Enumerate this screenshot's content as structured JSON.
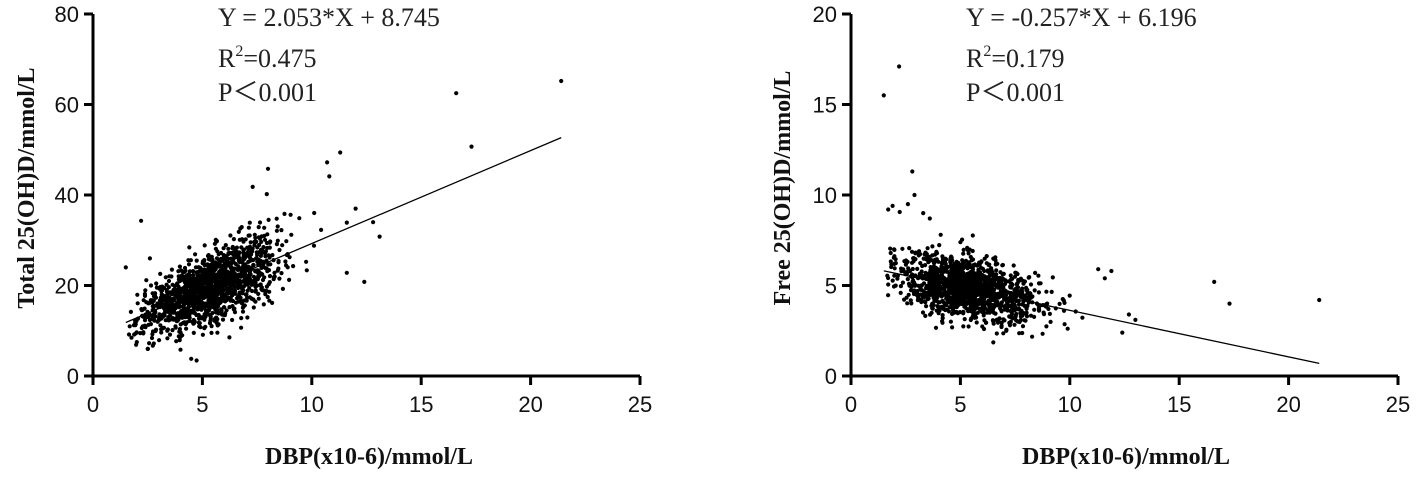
{
  "chart_data": [
    {
      "type": "scatter",
      "xlabel": "DBP(x10-6)/mmol/L",
      "ylabel": "Total 25(OH)D/mmol/L",
      "xlim": [
        0,
        25
      ],
      "ylim": [
        0,
        80
      ],
      "xticks": [
        "0",
        "5",
        "10",
        "15",
        "20",
        "25"
      ],
      "yticks": [
        "0",
        "20",
        "40",
        "60",
        "80"
      ],
      "annotations": {
        "equation": "Y = 2.053*X + 8.745",
        "r2_prefix": "R",
        "r2_sup": "2",
        "r2_value": "=0.475",
        "p": "P＜0.001"
      },
      "regression": {
        "slope": 2.053,
        "intercept": 8.745,
        "x_range": [
          1.5,
          21.4
        ]
      },
      "points": [
        [
          16.6,
          62.5
        ],
        [
          21.4,
          65.2
        ],
        [
          17.3,
          50.7
        ],
        [
          11.3,
          49.4
        ],
        [
          10.7,
          47.2
        ],
        [
          10.8,
          44.1
        ],
        [
          8.0,
          45.8
        ],
        [
          7.3,
          41.8
        ],
        [
          12.0,
          37.0
        ],
        [
          11.6,
          33.9
        ],
        [
          13.1,
          30.8
        ],
        [
          12.8,
          34.0
        ],
        [
          2.2,
          34.3
        ],
        [
          1.5,
          24.0
        ],
        [
          2.6,
          26.0
        ],
        [
          12.4,
          20.8
        ],
        [
          11.6,
          22.8
        ],
        [
          2.5,
          6.0
        ],
        [
          2.0,
          7.5
        ]
      ],
      "cloud": {
        "n": 1400,
        "x_mean": 5.3,
        "x_sd": 1.6,
        "x_min": 1.6,
        "x_max": 12.5,
        "resid_sd": 3.6
      }
    },
    {
      "type": "scatter",
      "xlabel": "DBP(x10-6)/mmol/L",
      "ylabel": "Free 25(OH)D/mmol/L",
      "xlim": [
        0,
        25
      ],
      "ylim": [
        0,
        20
      ],
      "xticks": [
        "0",
        "5",
        "10",
        "15",
        "20",
        "25"
      ],
      "yticks": [
        "0",
        "5",
        "10",
        "15",
        "20"
      ],
      "annotations": {
        "equation": "Y = -0.257*X + 6.196",
        "r2_prefix": "R",
        "r2_sup": "2",
        "r2_value": "=0.179",
        "p": "P＜0.001"
      },
      "regression": {
        "slope": -0.257,
        "intercept": 6.196,
        "x_range": [
          1.5,
          21.4
        ]
      },
      "points": [
        [
          1.5,
          15.5
        ],
        [
          2.2,
          17.1
        ],
        [
          2.8,
          11.3
        ],
        [
          2.9,
          10.0
        ],
        [
          1.9,
          9.4
        ],
        [
          1.7,
          9.2
        ],
        [
          2.6,
          9.5
        ],
        [
          3.3,
          9.0
        ],
        [
          3.6,
          8.7
        ],
        [
          16.6,
          5.2
        ],
        [
          17.3,
          4.0
        ],
        [
          21.4,
          4.2
        ],
        [
          11.3,
          5.9
        ],
        [
          11.9,
          5.8
        ],
        [
          11.6,
          5.4
        ],
        [
          12.7,
          3.4
        ],
        [
          13.0,
          3.1
        ],
        [
          12.4,
          2.4
        ]
      ],
      "cloud": {
        "n": 1400,
        "x_mean": 5.3,
        "x_sd": 1.6,
        "x_min": 1.6,
        "x_max": 12.5,
        "resid_sd": 0.85
      }
    }
  ]
}
